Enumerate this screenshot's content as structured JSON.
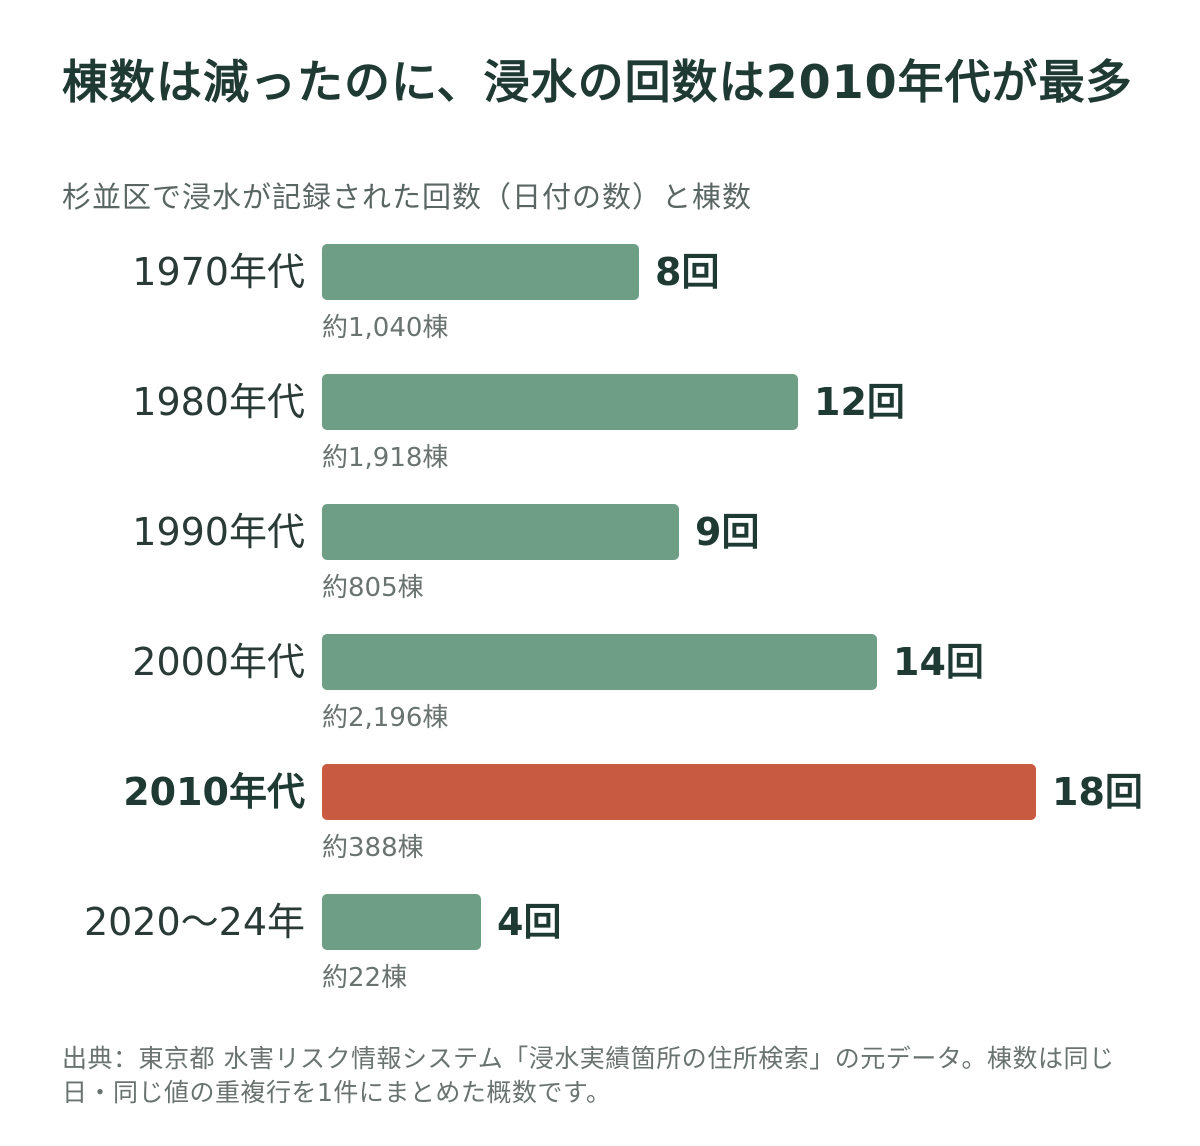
{
  "title": "棟数は減ったのに、浸水の回数は2010年代が最多",
  "subtitle": "杉並区で浸水が記録された回数（日付の数）と棟数",
  "source": "出典：東京都 水害リスク情報システム「浸水実績箇所の住所検索」の元データ。棟数は同じ日・同じ値の重複行を1件にまとめた概数です。",
  "colors": {
    "bar_default": "#6e9e86",
    "bar_highlight": "#c85a42",
    "text_dark": "#1f3a33",
    "text_gray": "#6a7370"
  },
  "chart_data": {
    "type": "bar",
    "orientation": "horizontal",
    "categories": [
      "1970年代",
      "1980年代",
      "1990年代",
      "2000年代",
      "2010年代",
      "2020～24年"
    ],
    "values": [
      8,
      12,
      9,
      14,
      18,
      4
    ],
    "value_labels": [
      "8回",
      "12回",
      "9回",
      "14回",
      "18回",
      "4回"
    ],
    "building_counts": [
      1040,
      1918,
      805,
      2196,
      388,
      22
    ],
    "building_labels": [
      "約1,040棟",
      "約1,918棟",
      "約805棟",
      "約2,196棟",
      "約388棟",
      "約22棟"
    ],
    "highlight": "2010年代",
    "xlim": [
      0,
      18
    ],
    "grid": false,
    "legend": "none"
  }
}
